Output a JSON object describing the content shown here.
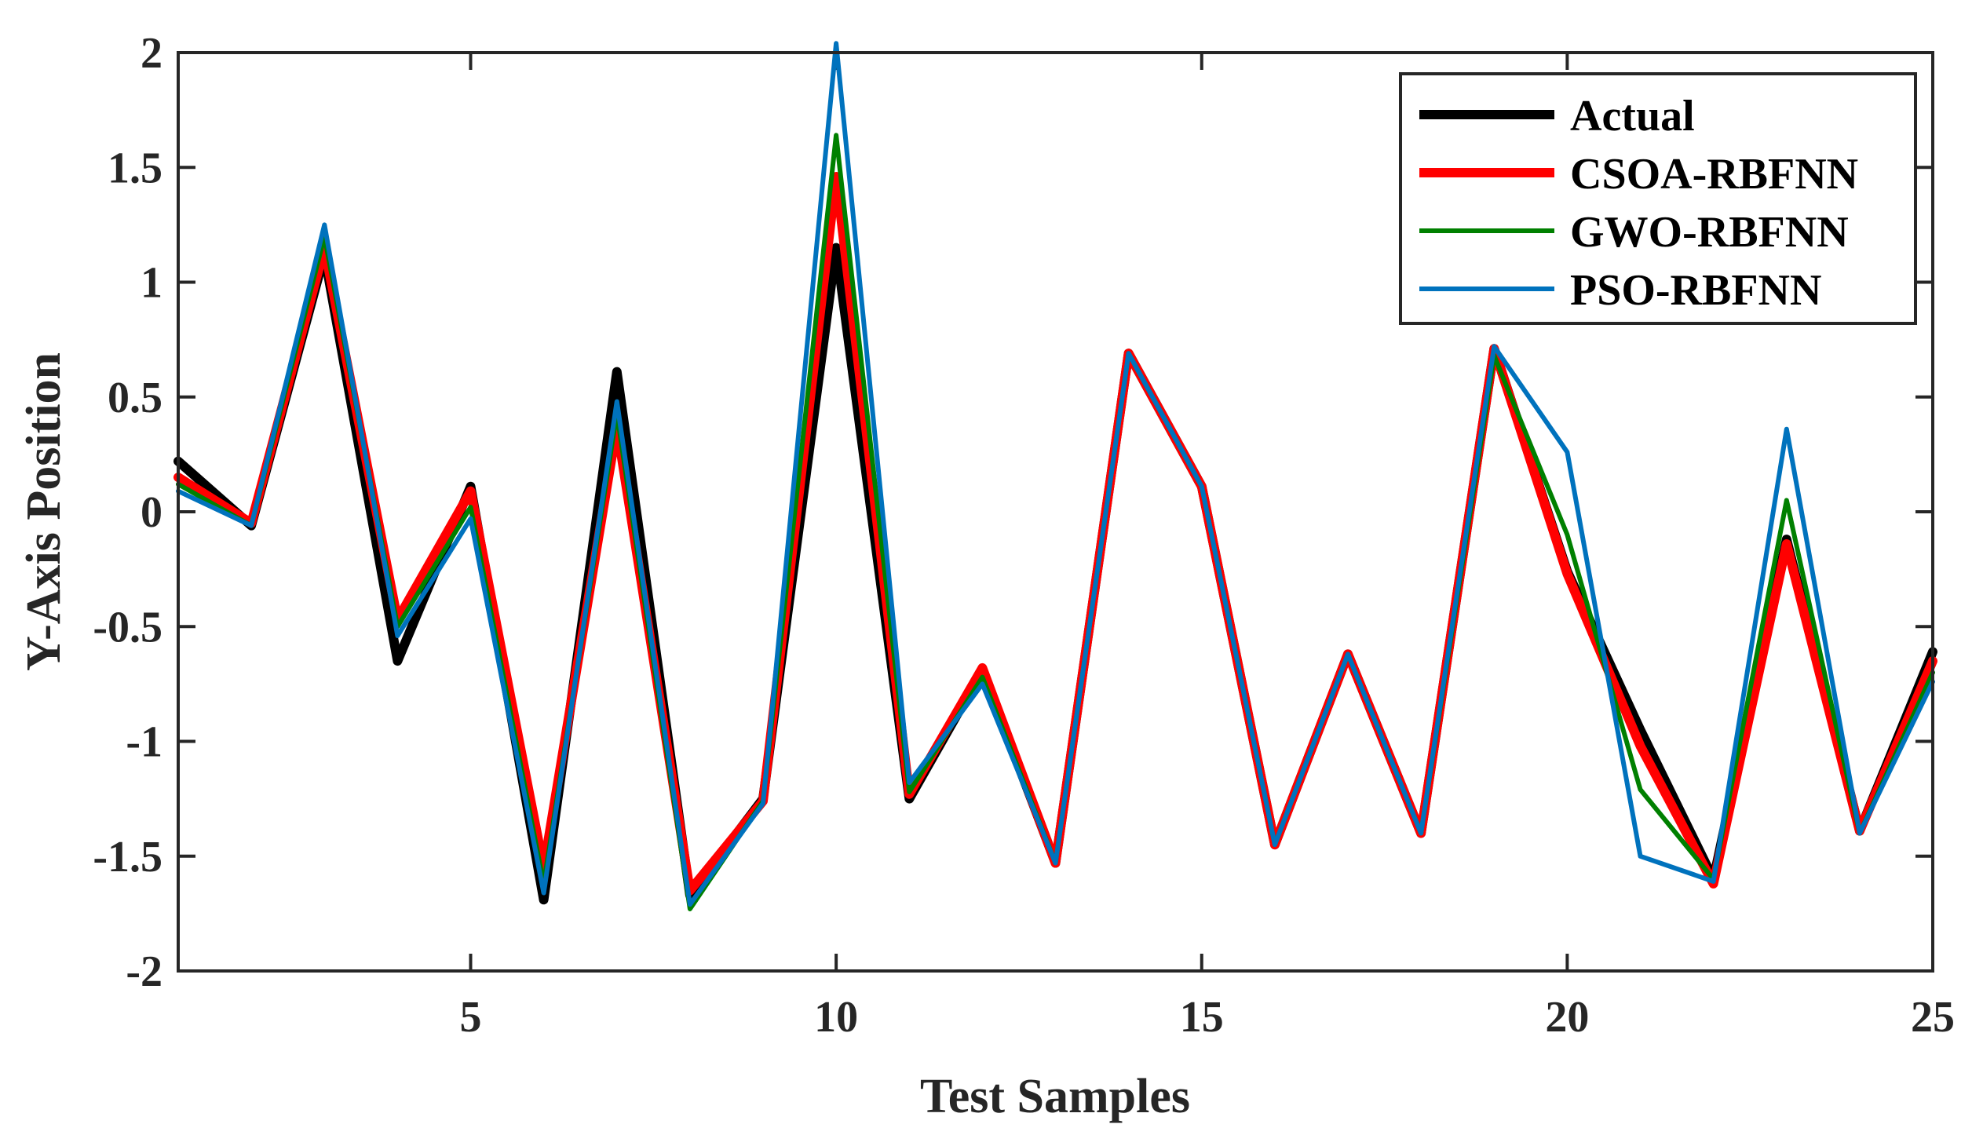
{
  "chart_data": {
    "type": "line",
    "title": "",
    "xlabel": "Test Samples",
    "ylabel": "Y-Axis Position",
    "xlim": [
      1,
      25
    ],
    "ylim": [
      -2,
      2
    ],
    "xticks": [
      5,
      10,
      15,
      20,
      25
    ],
    "yticks": [
      -2,
      -1.5,
      -1,
      -0.5,
      0,
      0.5,
      1,
      1.5,
      2
    ],
    "ytick_labels": [
      "-2",
      "-1.5",
      "-1",
      "-0.5",
      "0",
      "0.5",
      "1",
      "1.5",
      "2"
    ],
    "legend_position": "top-right",
    "x": [
      1,
      2,
      3,
      4,
      5,
      6,
      7,
      8,
      9,
      10,
      11,
      12,
      13,
      14,
      15,
      16,
      17,
      18,
      19,
      20,
      21,
      22,
      23,
      24,
      25
    ],
    "series": [
      {
        "name": "Actual",
        "color": "#000000",
        "width": "thick",
        "values": [
          0.22,
          -0.06,
          1.12,
          -0.65,
          0.11,
          -1.69,
          0.61,
          -1.67,
          -1.25,
          1.15,
          -1.25,
          -0.69,
          -1.53,
          0.69,
          0.11,
          -1.45,
          -0.62,
          -1.4,
          0.71,
          -0.26,
          -0.95,
          -1.6,
          -0.12,
          -1.39,
          -0.61
        ]
      },
      {
        "name": "CSOA-RBFNN",
        "color": "#ff0000",
        "width": "thick",
        "values": [
          0.15,
          -0.05,
          1.15,
          -0.47,
          0.09,
          -1.55,
          0.37,
          -1.65,
          -1.26,
          1.46,
          -1.23,
          -0.68,
          -1.53,
          0.69,
          0.11,
          -1.45,
          -0.62,
          -1.4,
          0.71,
          -0.27,
          -1.02,
          -1.62,
          -0.14,
          -1.39,
          -0.65
        ]
      },
      {
        "name": "GWO-RBFNN",
        "color": "#008000",
        "width": "medium",
        "values": [
          0.12,
          -0.06,
          1.2,
          -0.5,
          0.02,
          -1.62,
          0.43,
          -1.73,
          -1.26,
          1.64,
          -1.22,
          -0.72,
          -1.53,
          0.69,
          0.11,
          -1.45,
          -0.62,
          -1.4,
          0.68,
          -0.1,
          -1.21,
          -1.6,
          0.05,
          -1.4,
          -0.7
        ]
      },
      {
        "name": "PSO-RBFNN",
        "color": "#0072bd",
        "width": "medium",
        "values": [
          0.09,
          -0.06,
          1.25,
          -0.54,
          -0.03,
          -1.66,
          0.48,
          -1.71,
          -1.27,
          2.04,
          -1.18,
          -0.75,
          -1.53,
          0.69,
          0.11,
          -1.45,
          -0.62,
          -1.4,
          0.72,
          0.26,
          -1.5,
          -1.61,
          0.36,
          -1.4,
          -0.74
        ]
      }
    ]
  }
}
